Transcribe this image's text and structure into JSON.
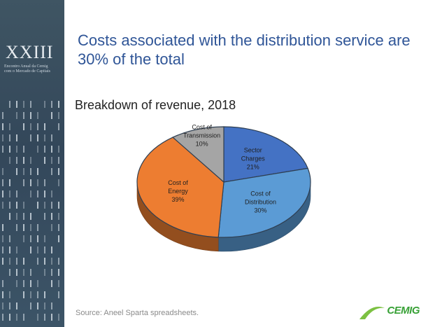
{
  "sidebar": {
    "logo_main": "XXIII",
    "logo_sub_line1": "Encontro Anual da Cemig",
    "logo_sub_line2": "com o Mercado de Capitais"
  },
  "slide": {
    "title_line1": "Costs associated with the distribution service are",
    "title_line2": "30% of the total",
    "source": "Source: Aneel Sparta spreadsheets.",
    "brand": "CEMIG"
  },
  "colors": {
    "title": "#2f5597",
    "sector_charges": "#4472c4",
    "distribution": "#5b9bd5",
    "energy": "#ed7d31",
    "transmission": "#a5a5a5"
  },
  "chart_data": {
    "type": "pie",
    "title": "Breakdown of revenue, 2018",
    "slices": [
      {
        "label_lines": [
          "Sector",
          "Charges"
        ],
        "value": 21,
        "value_label": "21%",
        "color": "#4472c4"
      },
      {
        "label_lines": [
          "Cost of",
          "Distribution"
        ],
        "value": 30,
        "value_label": "30%",
        "color": "#5b9bd5"
      },
      {
        "label_lines": [
          "Cost of",
          "Energy"
        ],
        "value": 39,
        "value_label": "39%",
        "color": "#ed7d31"
      },
      {
        "label_lines": [
          "Cost of",
          "Transmission"
        ],
        "value": 10,
        "value_label": "10%",
        "color": "#a5a5a5"
      }
    ]
  }
}
